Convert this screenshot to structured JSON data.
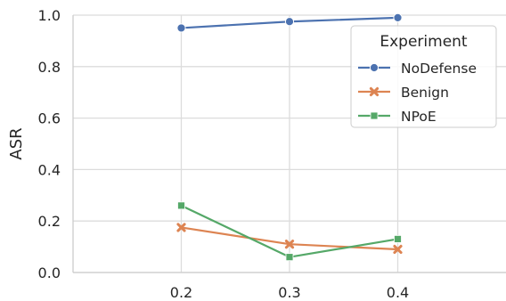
{
  "chart_data": {
    "type": "line",
    "title": "",
    "xlabel": "",
    "ylabel": "ASR",
    "x": [
      0.2,
      0.3,
      0.4
    ],
    "x_tick_labels": [
      "0.2",
      "0.3",
      "0.4"
    ],
    "ylim": [
      0.0,
      1.0
    ],
    "y_ticks": [
      0.0,
      0.2,
      0.4,
      0.6,
      0.8,
      1.0
    ],
    "y_tick_labels": [
      "0.0",
      "0.2",
      "0.4",
      "0.6",
      "0.8",
      "1.0"
    ],
    "grid": true,
    "legend": {
      "title": "Experiment",
      "placement": "top-right"
    },
    "series": [
      {
        "name": "NoDefense",
        "values": [
          0.95,
          0.975,
          0.99
        ],
        "color": "#4c72b0",
        "marker": "circle"
      },
      {
        "name": "Benign",
        "values": [
          0.175,
          0.11,
          0.09
        ],
        "color": "#dd8452",
        "marker": "x"
      },
      {
        "name": "NPoE",
        "values": [
          0.26,
          0.06,
          0.13
        ],
        "color": "#55a868",
        "marker": "square"
      }
    ]
  }
}
